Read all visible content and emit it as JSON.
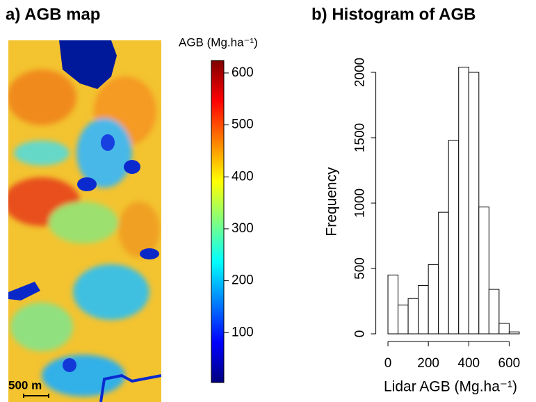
{
  "chart_data": [
    {
      "type": "raster",
      "title": "a) AGB map",
      "colorbar_label": "AGB (Mg.ha⁻¹)",
      "clim": [
        4,
        624
      ],
      "cticks": [
        100,
        200,
        300,
        400,
        500,
        600
      ],
      "scale_label": "500 m"
    },
    {
      "type": "histogram",
      "title": "b) Histogram of AGB",
      "xlabel": "Lidar AGB (Mg.ha⁻¹)",
      "ylabel": "Frequency",
      "bins": [
        0,
        50,
        100,
        150,
        200,
        250,
        300,
        350,
        400,
        450,
        500,
        550,
        600,
        650
      ],
      "values": [
        450,
        220,
        270,
        370,
        530,
        930,
        1480,
        2040,
        2000,
        970,
        340,
        80,
        15
      ],
      "color": "#ffffff",
      "xlim": [
        -60,
        695
      ],
      "ylim": [
        0,
        2000
      ],
      "xticks": [
        0,
        200,
        400,
        600
      ],
      "yticks": [
        0,
        500,
        1000,
        1500,
        2000
      ]
    }
  ]
}
